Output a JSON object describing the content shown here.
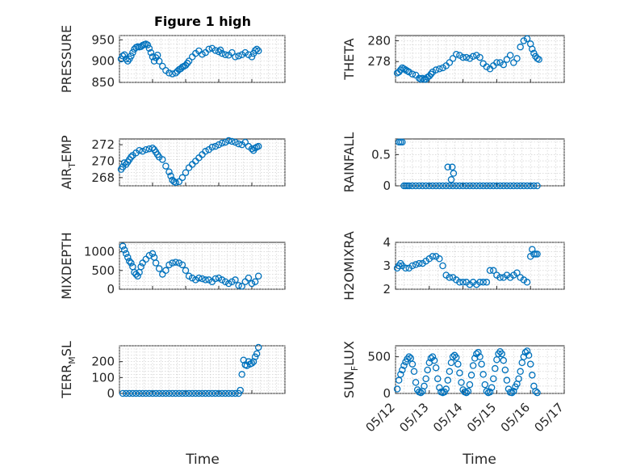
{
  "figure": {
    "title": "Figure 1 high",
    "xlabel": "Time"
  },
  "chart_data": [
    {
      "type": "scatter",
      "panel": "pressure",
      "ylabel": "PRESSURE",
      "ylim": [
        850,
        960
      ],
      "yticks": [
        850,
        900,
        950
      ],
      "xlim": [
        0,
        5
      ],
      "xticks": [
        0,
        1,
        2,
        3,
        4,
        5
      ],
      "xticklabels": [
        "05/12",
        "05/13",
        "05/14",
        "05/15",
        "05/16",
        "05/17"
      ],
      "grid": true,
      "show_xticklabels": false,
      "x": [
        0.05,
        0.1,
        0.15,
        0.2,
        0.25,
        0.3,
        0.35,
        0.4,
        0.45,
        0.5,
        0.55,
        0.6,
        0.65,
        0.7,
        0.75,
        0.8,
        0.85,
        0.9,
        0.95,
        1.0,
        1.05,
        1.1,
        1.15,
        1.2,
        1.3,
        1.4,
        1.5,
        1.6,
        1.7,
        1.75,
        1.8,
        1.85,
        1.9,
        1.95,
        2.0,
        2.05,
        2.1,
        2.2,
        2.3,
        2.4,
        2.5,
        2.6,
        2.7,
        2.8,
        2.9,
        3.0,
        3.05,
        3.1,
        3.2,
        3.3,
        3.4,
        3.5,
        3.6,
        3.7,
        3.8,
        3.9,
        4.0,
        4.05,
        4.1,
        4.15,
        4.2
      ],
      "y": [
        905,
        912,
        915,
        905,
        900,
        905,
        912,
        920,
        928,
        932,
        934,
        933,
        934,
        937,
        939,
        940,
        938,
        930,
        920,
        910,
        900,
        908,
        914,
        900,
        888,
        878,
        872,
        870,
        872,
        876,
        880,
        882,
        886,
        888,
        890,
        895,
        900,
        910,
        918,
        924,
        916,
        920,
        928,
        930,
        925,
        922,
        926,
        918,
        915,
        914,
        920,
        910,
        912,
        915,
        920,
        915,
        910,
        918,
        925,
        928,
        924
      ]
    },
    {
      "type": "scatter",
      "panel": "theta",
      "ylabel": "THETA",
      "ylim": [
        276.0,
        280.5
      ],
      "yticks": [
        278,
        280
      ],
      "xlim": [
        0,
        5
      ],
      "xticks": [
        0,
        1,
        2,
        3,
        4,
        5
      ],
      "xticklabels": [
        "05/12",
        "05/13",
        "05/14",
        "05/15",
        "05/16",
        "05/17"
      ],
      "grid": true,
      "show_xticklabels": false,
      "x": [
        0.05,
        0.1,
        0.15,
        0.2,
        0.25,
        0.3,
        0.35,
        0.4,
        0.5,
        0.6,
        0.7,
        0.75,
        0.8,
        0.85,
        0.9,
        0.95,
        1.0,
        1.05,
        1.1,
        1.2,
        1.3,
        1.4,
        1.5,
        1.6,
        1.7,
        1.8,
        1.9,
        2.0,
        2.1,
        2.2,
        2.3,
        2.4,
        2.5,
        2.6,
        2.7,
        2.8,
        2.9,
        3.0,
        3.1,
        3.2,
        3.3,
        3.4,
        3.5,
        3.6,
        3.7,
        3.8,
        3.9,
        4.0,
        4.05,
        4.1,
        4.15,
        4.2,
        4.25
      ],
      "y": [
        276.9,
        277.0,
        277.2,
        277.4,
        277.3,
        277.2,
        277.1,
        277.0,
        276.8,
        276.7,
        276.4,
        276.3,
        276.4,
        276.3,
        276.3,
        276.5,
        276.6,
        276.8,
        277.0,
        277.2,
        277.3,
        277.4,
        277.6,
        277.9,
        278.3,
        278.7,
        278.6,
        278.4,
        278.4,
        278.3,
        278.5,
        278.6,
        278.4,
        277.8,
        277.5,
        277.3,
        277.6,
        277.9,
        277.9,
        277.7,
        278.2,
        278.6,
        277.9,
        278.3,
        279.4,
        280.0,
        280.2,
        279.7,
        279.2,
        278.8,
        278.5,
        278.3,
        278.2
      ]
    },
    {
      "type": "scatter",
      "panel": "air_temp",
      "ylabel": "AIR_TEMP",
      "ylim": [
        267.0,
        272.7
      ],
      "yticks": [
        268,
        270,
        272
      ],
      "xlim": [
        0,
        5
      ],
      "xticks": [
        0,
        1,
        2,
        3,
        4,
        5
      ],
      "xticklabels": [
        "05/12",
        "05/13",
        "05/14",
        "05/15",
        "05/16",
        "05/17"
      ],
      "grid": true,
      "show_xticklabels": false,
      "x": [
        0.05,
        0.1,
        0.15,
        0.2,
        0.25,
        0.3,
        0.35,
        0.4,
        0.5,
        0.6,
        0.7,
        0.8,
        0.9,
        1.0,
        1.05,
        1.1,
        1.15,
        1.2,
        1.3,
        1.4,
        1.5,
        1.55,
        1.6,
        1.65,
        1.7,
        1.8,
        1.9,
        2.0,
        2.1,
        2.2,
        2.3,
        2.4,
        2.5,
        2.6,
        2.7,
        2.8,
        2.9,
        3.0,
        3.1,
        3.2,
        3.3,
        3.4,
        3.5,
        3.6,
        3.7,
        3.8,
        3.9,
        4.0,
        4.05,
        4.1,
        4.15,
        4.2
      ],
      "y": [
        269.0,
        269.3,
        269.8,
        269.6,
        269.9,
        270.2,
        270.5,
        270.7,
        271.0,
        271.3,
        271.2,
        271.4,
        271.5,
        271.6,
        271.4,
        271.1,
        270.8,
        270.5,
        270.2,
        269.4,
        268.7,
        268.2,
        267.7,
        267.5,
        267.4,
        267.5,
        268.0,
        268.6,
        269.2,
        269.6,
        270.0,
        270.4,
        270.8,
        271.2,
        271.4,
        271.7,
        271.8,
        272.0,
        272.2,
        272.3,
        272.5,
        272.4,
        272.3,
        272.1,
        272.0,
        272.3,
        271.8,
        271.5,
        271.3,
        271.6,
        271.7,
        271.8
      ]
    },
    {
      "type": "scatter",
      "panel": "rainfall",
      "ylabel": "RAINFALL",
      "ylim": [
        0,
        0.75
      ],
      "yticks": [
        0,
        0.5
      ],
      "xlim": [
        0,
        5
      ],
      "xticks": [
        0,
        1,
        2,
        3,
        4,
        5
      ],
      "xticklabels": [
        "05/12",
        "05/13",
        "05/14",
        "05/15",
        "05/16",
        "05/17"
      ],
      "grid": true,
      "show_xticklabels": false,
      "x": [
        0.1,
        0.15,
        0.2,
        0.25,
        0.3,
        0.35,
        0.4,
        0.5,
        0.6,
        0.7,
        0.8,
        0.9,
        1.0,
        1.1,
        1.2,
        1.3,
        1.4,
        1.5,
        1.6,
        1.7,
        1.8,
        1.9,
        2.0,
        2.1,
        2.2,
        2.3,
        2.4,
        2.5,
        2.6,
        2.7,
        2.8,
        2.9,
        3.0,
        3.1,
        3.2,
        3.3,
        3.4,
        3.5,
        3.6,
        3.7,
        3.8,
        3.9,
        4.0,
        4.1,
        4.2,
        1.55,
        1.65,
        1.68,
        1.72
      ],
      "y": [
        0.7,
        0.7,
        0.7,
        0,
        0,
        0,
        0,
        0,
        0,
        0,
        0,
        0,
        0,
        0,
        0,
        0,
        0,
        0,
        0,
        0,
        0,
        0,
        0,
        0,
        0,
        0,
        0,
        0,
        0,
        0,
        0,
        0,
        0,
        0,
        0,
        0,
        0,
        0,
        0,
        0,
        0,
        0,
        0,
        0,
        0,
        0.3,
        0.1,
        0.3,
        0.2
      ]
    },
    {
      "type": "scatter",
      "panel": "mixdepth",
      "ylabel": "MIXDEPTH",
      "ylim": [
        0,
        1250
      ],
      "yticks": [
        0,
        500,
        1000
      ],
      "xlim": [
        0,
        5
      ],
      "xticks": [
        0,
        1,
        2,
        3,
        4,
        5
      ],
      "xticklabels": [
        "05/12",
        "05/13",
        "05/14",
        "05/15",
        "05/16",
        "05/17"
      ],
      "grid": true,
      "show_xticklabels": false,
      "x": [
        0.1,
        0.15,
        0.2,
        0.25,
        0.3,
        0.35,
        0.4,
        0.45,
        0.5,
        0.55,
        0.6,
        0.65,
        0.7,
        0.8,
        0.9,
        1.0,
        1.05,
        1.1,
        1.2,
        1.3,
        1.4,
        1.5,
        1.6,
        1.7,
        1.8,
        1.9,
        2.0,
        2.1,
        2.2,
        2.3,
        2.4,
        2.5,
        2.6,
        2.7,
        2.8,
        2.9,
        3.0,
        3.1,
        3.2,
        3.3,
        3.4,
        3.5,
        3.6,
        3.7,
        3.8,
        3.9,
        4.0,
        4.1,
        4.2
      ],
      "y": [
        1150,
        1050,
        950,
        850,
        750,
        700,
        600,
        450,
        400,
        350,
        450,
        600,
        700,
        800,
        900,
        950,
        850,
        700,
        550,
        400,
        500,
        650,
        700,
        720,
        700,
        650,
        500,
        350,
        300,
        250,
        300,
        280,
        250,
        250,
        200,
        280,
        300,
        250,
        200,
        150,
        200,
        250,
        100,
        80,
        200,
        300,
        150,
        200,
        350
      ]
    },
    {
      "type": "scatter",
      "panel": "h2omixra",
      "ylabel": "H2OMIXRA",
      "ylim": [
        2.0,
        4.0
      ],
      "yticks": [
        2,
        3,
        4
      ],
      "xlim": [
        0,
        5
      ],
      "xticks": [
        0,
        1,
        2,
        3,
        4,
        5
      ],
      "xticklabels": [
        "05/12",
        "05/13",
        "05/14",
        "05/15",
        "05/16",
        "05/17"
      ],
      "grid": true,
      "show_xticklabels": false,
      "x": [
        0.05,
        0.1,
        0.15,
        0.2,
        0.3,
        0.4,
        0.5,
        0.6,
        0.7,
        0.8,
        0.9,
        1.0,
        1.1,
        1.2,
        1.3,
        1.4,
        1.5,
        1.6,
        1.7,
        1.8,
        1.9,
        2.0,
        2.1,
        2.2,
        2.3,
        2.4,
        2.5,
        2.6,
        2.7,
        2.8,
        2.9,
        3.0,
        3.1,
        3.2,
        3.3,
        3.4,
        3.5,
        3.6,
        3.7,
        3.8,
        3.9,
        4.0,
        4.05,
        4.1,
        4.15,
        4.2
      ],
      "y": [
        2.9,
        3.0,
        3.1,
        3.0,
        2.9,
        2.9,
        3.0,
        3.05,
        3.1,
        3.1,
        3.2,
        3.3,
        3.4,
        3.4,
        3.3,
        3.0,
        2.6,
        2.5,
        2.5,
        2.4,
        2.3,
        2.3,
        2.3,
        2.2,
        2.3,
        2.2,
        2.3,
        2.3,
        2.3,
        2.8,
        2.8,
        2.6,
        2.5,
        2.5,
        2.6,
        2.5,
        2.6,
        2.7,
        2.5,
        2.4,
        2.3,
        3.4,
        3.7,
        3.5,
        3.5,
        3.5
      ]
    },
    {
      "type": "scatter",
      "panel": "terr_msl",
      "ylabel": "TERR_MSL",
      "ylim": [
        0,
        300
      ],
      "yticks": [
        0,
        100,
        200
      ],
      "xlim": [
        0,
        5
      ],
      "xticks": [
        0,
        1,
        2,
        3,
        4,
        5
      ],
      "xticklabels": [
        "05/12",
        "05/13",
        "05/14",
        "05/15",
        "05/16",
        "05/17"
      ],
      "grid": true,
      "show_xticklabels": false,
      "x": [
        0.1,
        0.2,
        0.3,
        0.4,
        0.5,
        0.6,
        0.7,
        0.8,
        0.9,
        1.0,
        1.1,
        1.2,
        1.3,
        1.4,
        1.5,
        1.6,
        1.7,
        1.8,
        1.9,
        2.0,
        2.1,
        2.2,
        2.3,
        2.4,
        2.5,
        2.6,
        2.7,
        2.8,
        2.9,
        3.0,
        3.1,
        3.2,
        3.3,
        3.4,
        3.5,
        3.6,
        3.65,
        3.7,
        3.75,
        3.8,
        3.85,
        3.9,
        3.95,
        4.0,
        4.05,
        4.1,
        4.15,
        4.2
      ],
      "y": [
        0,
        0,
        0,
        0,
        0,
        0,
        0,
        0,
        0,
        0,
        0,
        0,
        0,
        0,
        0,
        0,
        0,
        0,
        0,
        0,
        0,
        0,
        0,
        0,
        0,
        0,
        0,
        0,
        0,
        0,
        0,
        0,
        0,
        0,
        0,
        0,
        20,
        120,
        210,
        180,
        175,
        200,
        185,
        190,
        200,
        230,
        250,
        290
      ]
    },
    {
      "type": "scatter",
      "panel": "sun_flux",
      "ylabel": "SUN_FLUX",
      "ylim": [
        0,
        650
      ],
      "yticks": [
        0,
        500
      ],
      "xlim": [
        0,
        5
      ],
      "xticks": [
        0,
        1,
        2,
        3,
        4,
        5
      ],
      "xticklabels": [
        "05/12",
        "05/13",
        "05/14",
        "05/15",
        "05/16",
        "05/17"
      ],
      "grid": true,
      "show_xticklabels": true,
      "x": [
        0.05,
        0.1,
        0.15,
        0.2,
        0.25,
        0.3,
        0.35,
        0.4,
        0.45,
        0.5,
        0.55,
        0.6,
        0.65,
        0.7,
        0.75,
        0.8,
        0.85,
        0.9,
        0.95,
        1.0,
        1.05,
        1.1,
        1.15,
        1.2,
        1.25,
        1.3,
        1.35,
        1.4,
        1.45,
        1.5,
        1.55,
        1.6,
        1.65,
        1.7,
        1.75,
        1.8,
        1.85,
        1.9,
        1.95,
        2.0,
        2.05,
        2.1,
        2.15,
        2.2,
        2.25,
        2.3,
        2.35,
        2.4,
        2.45,
        2.5,
        2.55,
        2.6,
        2.65,
        2.7,
        2.75,
        2.8,
        2.85,
        2.9,
        2.95,
        3.0,
        3.05,
        3.1,
        3.15,
        3.2,
        3.25,
        3.3,
        3.35,
        3.4,
        3.45,
        3.5,
        3.55,
        3.6,
        3.65,
        3.7,
        3.75,
        3.8,
        3.85,
        3.9,
        3.95,
        4.0,
        4.05,
        4.1,
        4.15,
        4.2
      ],
      "y": [
        60,
        180,
        260,
        320,
        380,
        430,
        470,
        500,
        480,
        400,
        300,
        150,
        50,
        20,
        10,
        30,
        100,
        200,
        320,
        420,
        480,
        500,
        450,
        350,
        200,
        80,
        20,
        10,
        20,
        60,
        180,
        300,
        420,
        500,
        520,
        490,
        400,
        280,
        150,
        50,
        20,
        10,
        30,
        120,
        250,
        380,
        480,
        540,
        560,
        500,
        400,
        260,
        120,
        30,
        10,
        20,
        80,
        200,
        340,
        460,
        540,
        570,
        540,
        450,
        320,
        180,
        60,
        15,
        10,
        30,
        90,
        130,
        200,
        300,
        420,
        500,
        560,
        580,
        520,
        400,
        250,
        100,
        30,
        10
      ]
    }
  ]
}
